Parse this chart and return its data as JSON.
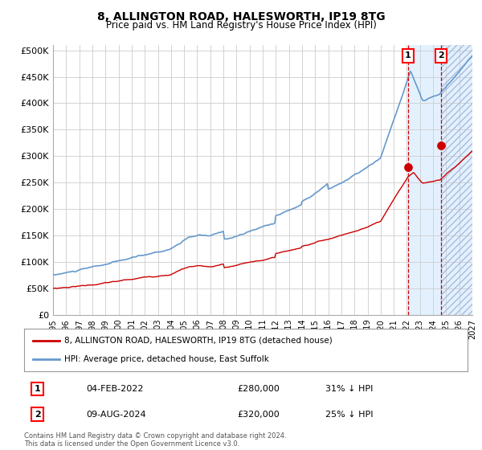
{
  "title1": "8, ALLINGTON ROAD, HALESWORTH, IP19 8TG",
  "title2": "Price paid vs. HM Land Registry's House Price Index (HPI)",
  "ylabel_ticks": [
    "£0",
    "£50K",
    "£100K",
    "£150K",
    "£200K",
    "£250K",
    "£300K",
    "£350K",
    "£400K",
    "£450K",
    "£500K"
  ],
  "ytick_values": [
    0,
    50000,
    100000,
    150000,
    200000,
    250000,
    300000,
    350000,
    400000,
    450000,
    500000
  ],
  "xlim": [
    1995,
    2027
  ],
  "ylim": [
    0,
    510000
  ],
  "transaction1": {
    "date": "04-FEB-2022",
    "price": 280000,
    "label": "1",
    "pct": "31% ↓ HPI",
    "x": 2022.09
  },
  "transaction2": {
    "date": "09-AUG-2024",
    "price": 320000,
    "label": "2",
    "pct": "25% ↓ HPI",
    "x": 2024.6
  },
  "legend_line1": "8, ALLINGTON ROAD, HALESWORTH, IP19 8TG (detached house)",
  "legend_line2": "HPI: Average price, detached house, East Suffolk",
  "footer": "Contains HM Land Registry data © Crown copyright and database right 2024.\nThis data is licensed under the Open Government Licence v3.0.",
  "hpi_color": "#6699cc",
  "price_color": "#cc0000",
  "bg_color": "#ffffff",
  "grid_color": "#cccccc",
  "shade_color": "#ddeeff",
  "hatch_color": "#aaaacc",
  "xticks": [
    1995,
    1996,
    1997,
    1998,
    1999,
    2000,
    2001,
    2002,
    2003,
    2004,
    2005,
    2006,
    2007,
    2008,
    2009,
    2010,
    2011,
    2012,
    2013,
    2014,
    2015,
    2016,
    2017,
    2018,
    2019,
    2020,
    2021,
    2022,
    2023,
    2024,
    2025,
    2026,
    2027
  ]
}
